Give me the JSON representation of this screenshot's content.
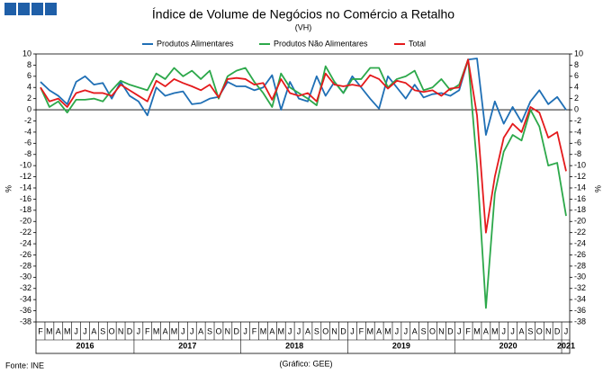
{
  "chart_data": {
    "type": "line",
    "title": "Índice de Volume  de Negócios no Comércio a Retalho",
    "subtitle": "(VH)",
    "y_label": "%",
    "y2_label": "%",
    "source": "Fonte: INE",
    "credit": "(Gráfico: GEE)",
    "legend": "top",
    "grid": false,
    "categories": [
      "F",
      "M",
      "A",
      "M",
      "J",
      "J",
      "A",
      "S",
      "O",
      "N",
      "D",
      "J",
      "F",
      "M",
      "A",
      "M",
      "J",
      "J",
      "A",
      "S",
      "O",
      "N",
      "D",
      "J",
      "F",
      "M",
      "A",
      "M",
      "J",
      "J",
      "A",
      "S",
      "O",
      "N",
      "D",
      "J",
      "F",
      "M",
      "A",
      "M",
      "J",
      "J",
      "A",
      "S",
      "O",
      "N",
      "D",
      "J",
      "F",
      "M",
      "A",
      "M",
      "J",
      "J",
      "A",
      "S",
      "O",
      "N",
      "D",
      "J"
    ],
    "years": [
      "2016",
      "2017",
      "2018",
      "2019",
      "2020",
      "2021"
    ],
    "ylim": [
      -38,
      10
    ],
    "yticks": [
      10,
      8,
      6,
      4,
      2,
      0,
      -2,
      -4,
      -6,
      -8,
      -10,
      -12,
      -14,
      -16,
      -18,
      -20,
      -22,
      -24,
      -26,
      -28,
      -30,
      -32,
      -34,
      -36,
      -38
    ],
    "y2lim": [
      -38,
      10
    ],
    "y2ticks": [
      10,
      8,
      6,
      4,
      2,
      0,
      -2,
      -4,
      -6,
      -8,
      -10,
      -12,
      -14,
      -16,
      -18,
      -20,
      -22,
      -24,
      -26,
      -28,
      -30,
      -32,
      -34,
      -36,
      -38
    ],
    "series": [
      {
        "name": "Produtos Alimentares",
        "color": "#1f6fb5",
        "values": [
          5,
          3.5,
          2.5,
          1,
          5,
          6,
          4.5,
          4.8,
          2,
          5,
          2.5,
          1.5,
          -1,
          4,
          2.5,
          3,
          3.3,
          1,
          1.2,
          2,
          2.3,
          5,
          4.2,
          4.2,
          3.5,
          4,
          6.2,
          0,
          5,
          2,
          1.5,
          6,
          2.5,
          5,
          3,
          6,
          4,
          2,
          0.2,
          6,
          4,
          2,
          4.5,
          2.2,
          2.8,
          3,
          2.5,
          3.5,
          9,
          9.2,
          -4.5,
          1.5,
          -2.5,
          0.5,
          -2.2,
          1.5,
          3.5,
          1,
          2.3,
          0
        ]
      },
      {
        "name": "Produtos Não Alimentares",
        "color": "#2ca84a",
        "values": [
          4,
          0.5,
          1.5,
          -0.5,
          1.8,
          1.8,
          2,
          1.5,
          3.5,
          5.2,
          4.5,
          4,
          3.5,
          6.5,
          5.5,
          7.5,
          6,
          7,
          5.5,
          7,
          2,
          6,
          7,
          7.5,
          5,
          3,
          0.5,
          6.5,
          4,
          3,
          2,
          0.8,
          7.8,
          5,
          3,
          5.5,
          5.5,
          7.5,
          7.5,
          4,
          5.5,
          6,
          7,
          3.5,
          4,
          5.5,
          3.5,
          4.5,
          9,
          -10,
          -35.5,
          -15,
          -7.5,
          -4.5,
          -5.5,
          0,
          -3,
          -10,
          -9.5,
          -19
        ]
      },
      {
        "name": "Total",
        "color": "#e41a1c",
        "values": [
          4,
          1.5,
          2,
          0.5,
          3,
          3.5,
          3,
          3,
          2.5,
          4.5,
          3.5,
          2.5,
          1.5,
          5.2,
          4.2,
          5.5,
          4.8,
          4.2,
          3.5,
          4.5,
          2.2,
          5.5,
          5.7,
          5.5,
          4.5,
          4.8,
          1.8,
          5.5,
          3,
          2.5,
          3,
          1.5,
          6.5,
          4.5,
          4.2,
          4.5,
          4.2,
          6.2,
          5.5,
          3.8,
          5.2,
          4.8,
          3.5,
          3.2,
          3.5,
          2.5,
          3.8,
          4,
          9,
          -1,
          -22,
          -12,
          -5,
          -2.5,
          -4,
          0.5,
          -0.5,
          -5,
          -4,
          -11
        ]
      }
    ]
  }
}
